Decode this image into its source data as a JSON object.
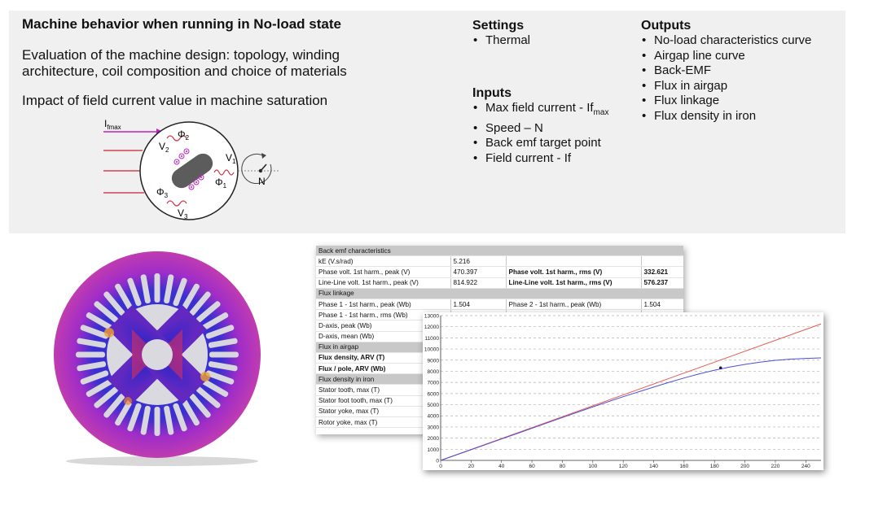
{
  "title": "Machine behavior when running in No-load state",
  "description": {
    "line1": "Evaluation of the machine design: topology, winding",
    "line2": "architecture, coil composition and choice of materials",
    "impact": "Impact of field current value in machine saturation"
  },
  "settings": {
    "heading": "Settings",
    "items": [
      "Thermal"
    ]
  },
  "inputs": {
    "heading": "Inputs",
    "max_field_current": {
      "prefix": "Max field current - If",
      "subscript": "max"
    },
    "items": [
      "Speed – N",
      "Back emf target point",
      "Field current - If"
    ]
  },
  "outputs": {
    "heading": "Outputs",
    "items": [
      "No-load characteristics curve",
      "Airgap line curve",
      "Back-EMF",
      "Flux in airgap",
      "Flux linkage",
      "Flux density in iron"
    ]
  },
  "schematic": {
    "current_main": "I",
    "current_sub": "fmax",
    "phi1_main": "Φ",
    "phi1_sub": "1",
    "phi2_main": "Φ",
    "phi2_sub": "2",
    "phi3_main": "Φ",
    "phi3_sub": "3",
    "v1_main": "V",
    "v1_sub": "1",
    "v2_main": "V",
    "v2_sub": "2",
    "v3_main": "V",
    "v3_sub": "3",
    "speed": "N"
  },
  "table": {
    "rows": [
      {
        "type": "section",
        "cells": [
          "Back emf characteristics",
          "",
          "",
          ""
        ]
      },
      {
        "type": "row",
        "cells": [
          "kE (V.s/rad)",
          "5.216",
          "",
          ""
        ]
      },
      {
        "type": "row",
        "cells": [
          "Phase volt. 1st harm., peak (V)",
          "470.397",
          "Phase volt. 1st harm., rms (V)",
          "332.621"
        ],
        "bold": [
          2,
          3
        ]
      },
      {
        "type": "row",
        "cells": [
          "Line-Line volt. 1st harm., peak (V)",
          "814.922",
          "Line-Line volt. 1st harm., rms (V)",
          "576.237"
        ],
        "bold": [
          2,
          3
        ]
      },
      {
        "type": "section",
        "cells": [
          "Flux linkage",
          "",
          "",
          ""
        ]
      },
      {
        "type": "row",
        "cells": [
          "Phase 1 - 1st harm., peak (Wb)",
          "1.504",
          "Phase 2 - 1st harm., peak (Wb)",
          "1.504"
        ]
      },
      {
        "type": "row",
        "cells": [
          "Phase 1 - 1st harm., rms (Wb)",
          "",
          "",
          ""
        ]
      },
      {
        "type": "row",
        "cells": [
          "D-axis, peak (Wb)",
          "",
          "",
          ""
        ]
      },
      {
        "type": "row",
        "cells": [
          "D-axis, mean (Wb)",
          "",
          "",
          ""
        ]
      },
      {
        "type": "section",
        "cells": [
          "Flux in airgap",
          "",
          "",
          ""
        ]
      },
      {
        "type": "row",
        "cells": [
          "Flux density, ARV (T)",
          "",
          "",
          ""
        ],
        "bold": [
          0
        ]
      },
      {
        "type": "row",
        "cells": [
          "Flux / pole, ARV (Wb)",
          "",
          "",
          ""
        ],
        "bold": [
          0
        ]
      },
      {
        "type": "section",
        "cells": [
          "Flux density in iron",
          "",
          "",
          ""
        ]
      },
      {
        "type": "row",
        "cells": [
          "Stator tooth, max (T)",
          "",
          "",
          ""
        ]
      },
      {
        "type": "row",
        "cells": [
          "Stator foot tooth, max (T)",
          "",
          "",
          ""
        ]
      },
      {
        "type": "row",
        "cells": [
          "Stator yoke, max (T)",
          "",
          "",
          ""
        ]
      },
      {
        "type": "row",
        "cells": [
          "Rotor yoke, max (T)",
          "",
          "",
          ""
        ]
      }
    ]
  },
  "chart_data": {
    "type": "line",
    "xlim": [
      0,
      250
    ],
    "ylim": [
      0,
      13000
    ],
    "xticks": [
      0,
      20,
      40,
      60,
      80,
      100,
      120,
      140,
      160,
      180,
      200,
      220,
      240
    ],
    "yticks": [
      0,
      1000,
      2000,
      3000,
      4000,
      5000,
      6000,
      7000,
      8000,
      9000,
      10000,
      11000,
      12000,
      13000
    ],
    "grid": "horizontal dashed",
    "series": [
      {
        "color": "#e8584f",
        "x": [
          0,
          250
        ],
        "y": [
          0,
          12250
        ]
      },
      {
        "color": "#4a4fd8",
        "x": [
          0,
          20,
          40,
          60,
          80,
          100,
          120,
          140,
          150,
          160,
          170,
          180,
          190,
          200,
          210,
          220,
          230,
          240,
          250
        ],
        "y": [
          0,
          960,
          1920,
          2880,
          3850,
          4800,
          5720,
          6580,
          7000,
          7400,
          7770,
          8100,
          8380,
          8620,
          8820,
          8980,
          9090,
          9160,
          9200
        ]
      }
    ],
    "target_point": {
      "x": 184,
      "y": 8300
    }
  }
}
